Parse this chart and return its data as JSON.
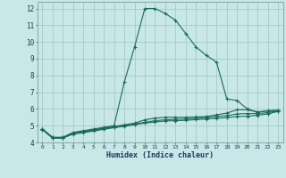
{
  "title": "",
  "xlabel": "Humidex (Indice chaleur)",
  "bg_color": "#c8e8e8",
  "grid_color": "#a8c8c8",
  "line_color": "#1a6a5a",
  "xlim": [
    -0.5,
    23.5
  ],
  "ylim": [
    4,
    12.4
  ],
  "xticks": [
    0,
    1,
    2,
    3,
    4,
    5,
    6,
    7,
    8,
    9,
    10,
    11,
    12,
    13,
    14,
    15,
    16,
    17,
    18,
    19,
    20,
    21,
    22,
    23
  ],
  "yticks": [
    4,
    5,
    6,
    7,
    8,
    9,
    10,
    11,
    12
  ],
  "curve1_x": [
    0,
    1,
    2,
    3,
    4,
    5,
    6,
    7,
    8,
    9,
    10,
    11,
    12,
    13,
    14,
    15,
    16,
    17,
    18,
    19,
    20,
    21,
    22,
    23
  ],
  "curve1_y": [
    4.8,
    4.3,
    4.3,
    4.6,
    4.7,
    4.8,
    4.9,
    5.0,
    7.6,
    9.7,
    12.0,
    12.0,
    11.7,
    11.3,
    10.5,
    9.7,
    9.2,
    8.8,
    6.6,
    6.5,
    6.0,
    5.8,
    5.9,
    5.9
  ],
  "curve2_x": [
    0,
    1,
    2,
    3,
    4,
    5,
    6,
    7,
    8,
    9,
    10,
    11,
    12,
    13,
    14,
    15,
    16,
    17,
    18,
    19,
    20,
    21,
    22,
    23
  ],
  "curve2_y": [
    4.8,
    4.3,
    4.3,
    4.55,
    4.65,
    4.75,
    4.85,
    4.95,
    5.05,
    5.15,
    5.35,
    5.45,
    5.5,
    5.5,
    5.5,
    5.52,
    5.55,
    5.65,
    5.75,
    5.95,
    5.95,
    5.82,
    5.88,
    5.92
  ],
  "curve3_x": [
    0,
    1,
    2,
    3,
    4,
    5,
    6,
    7,
    8,
    9,
    10,
    11,
    12,
    13,
    14,
    15,
    16,
    17,
    18,
    19,
    20,
    21,
    22,
    23
  ],
  "curve3_y": [
    4.78,
    4.28,
    4.28,
    4.53,
    4.62,
    4.72,
    4.82,
    4.92,
    5.0,
    5.1,
    5.2,
    5.3,
    5.35,
    5.38,
    5.4,
    5.45,
    5.48,
    5.55,
    5.6,
    5.7,
    5.72,
    5.72,
    5.78,
    5.88
  ],
  "curve4_x": [
    0,
    1,
    2,
    3,
    4,
    5,
    6,
    7,
    8,
    9,
    10,
    11,
    12,
    13,
    14,
    15,
    16,
    17,
    18,
    19,
    20,
    21,
    22,
    23
  ],
  "curve4_y": [
    4.76,
    4.25,
    4.25,
    4.5,
    4.58,
    4.68,
    4.78,
    4.88,
    4.96,
    5.06,
    5.15,
    5.22,
    5.28,
    5.3,
    5.32,
    5.36,
    5.4,
    5.44,
    5.48,
    5.55,
    5.56,
    5.62,
    5.7,
    5.85
  ]
}
